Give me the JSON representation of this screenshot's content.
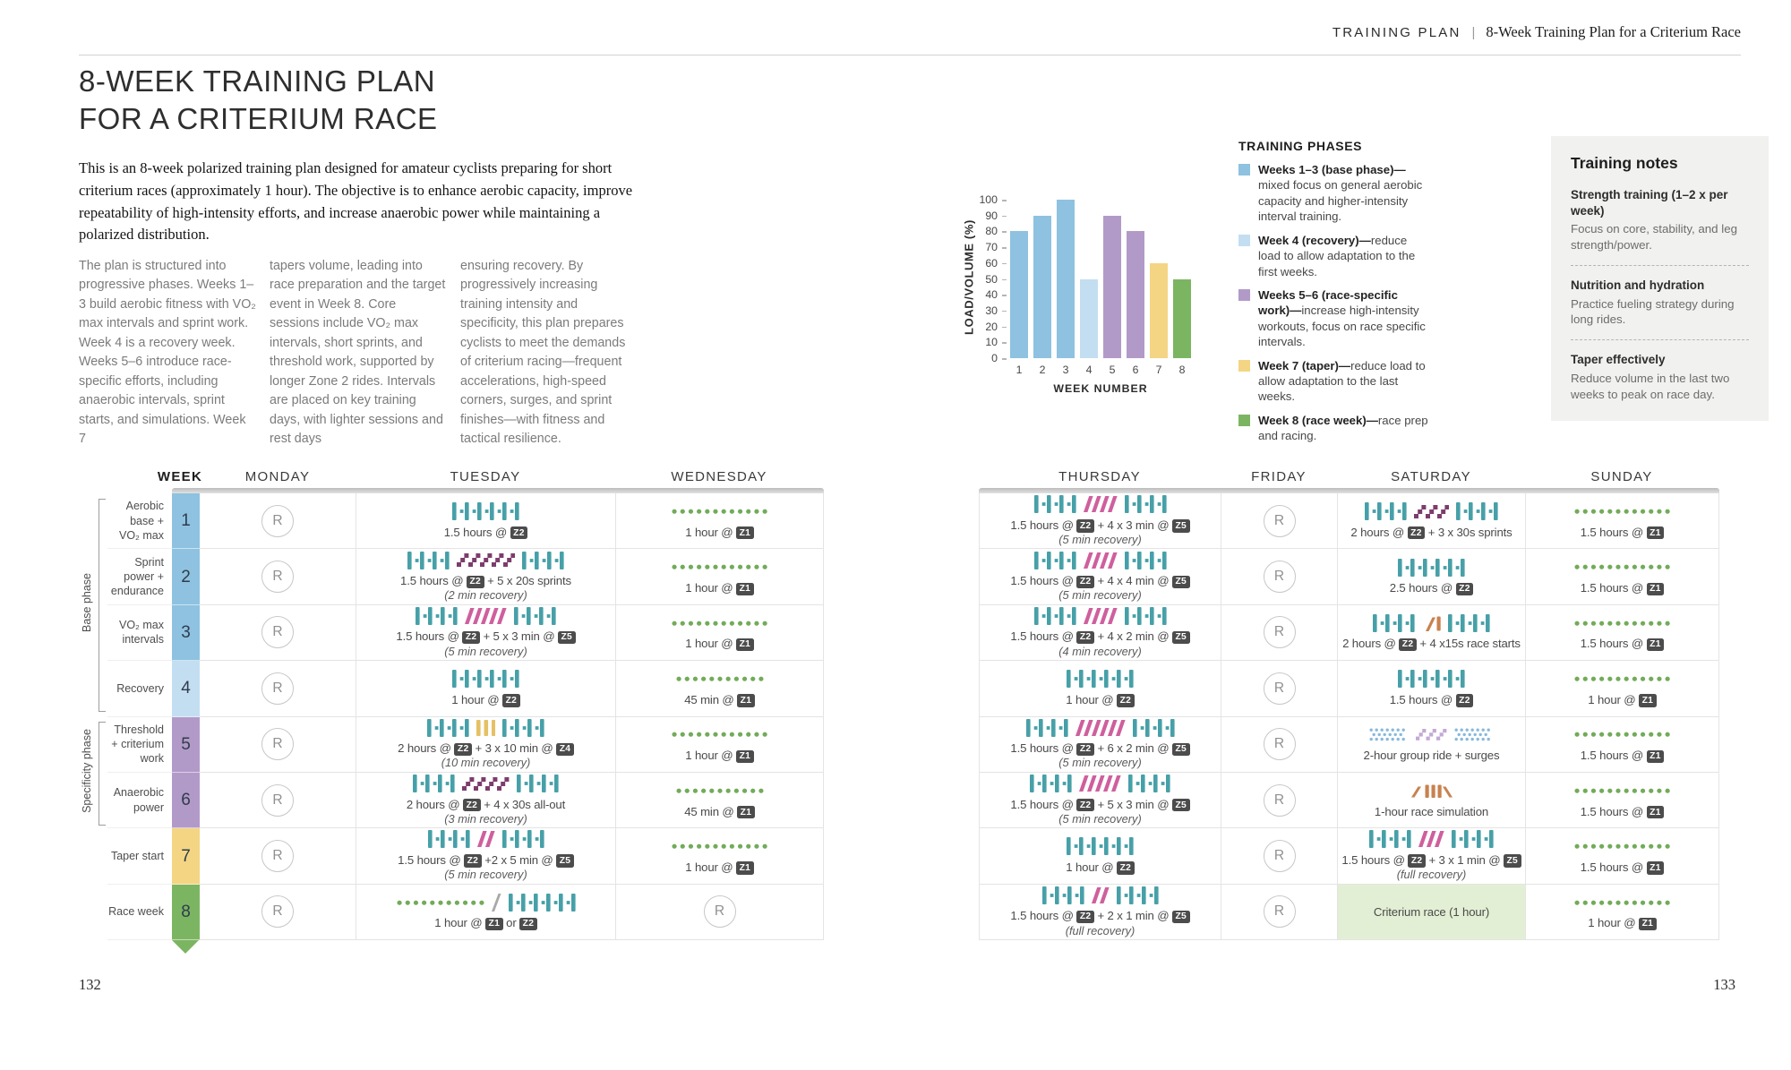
{
  "header": {
    "section": "TRAINING PLAN",
    "divider": "|",
    "subtitle": "8-Week Training Plan for a Criterium Race"
  },
  "page_left": {
    "title_line1": "8-WEEK TRAINING PLAN",
    "title_line2": "FOR A CRITERIUM RACE",
    "intro": "This is an 8-week polarized training plan designed for amateur cyclists preparing for short criterium races (approximately 1 hour). The objective is to enhance aerobic capacity, improve repeatability of high-intensity efforts, and increase anaerobic power while maintaining a polarized distribution.",
    "columns": [
      "The plan is structured into progressive phases. Weeks 1–3 build aerobic fitness with VO₂ max intervals and sprint work. Week 4 is a recovery week. Weeks 5–6 introduce race-specific efforts, including anaerobic intervals, sprint starts, and simulations. Week 7",
      "tapers volume, leading into race preparation and the target event in Week 8. Core sessions include VO₂ max intervals, short sprints, and threshold work, supported by longer Zone 2 rides. Intervals are placed on key training days, with lighter sessions and rest days",
      "ensuring recovery. By progressively increasing training intensity and specificity, this plan prepares cyclists to meet the demands of criterium racing—frequent accelerations, high-speed corners, surges, and sprint finishes—with fitness and tactical resilience."
    ],
    "page_number": "132"
  },
  "page_right": {
    "page_number": "133"
  },
  "chart_data": {
    "type": "bar",
    "categories": [
      "1",
      "2",
      "3",
      "4",
      "5",
      "6",
      "7",
      "8"
    ],
    "values": [
      80,
      90,
      100,
      50,
      90,
      80,
      60,
      50
    ],
    "colors": [
      "#8ec2e0",
      "#8ec2e0",
      "#8ec2e0",
      "#c3def1",
      "#b29ac8",
      "#b29ac8",
      "#f3d584",
      "#7cb562"
    ],
    "xlabel": "WEEK NUMBER",
    "ylabel": "LOAD/VOLUME (%)",
    "ylim": [
      0,
      100
    ],
    "ytick_step": 10,
    "grid": false,
    "legend_position": "right"
  },
  "legend": {
    "title": "TRAINING PHASES",
    "items": [
      {
        "color": "#8ec2e0",
        "lead": "Weeks 1–3 (base phase)—",
        "rest": "mixed focus on general aerobic capacity and higher-intensity interval training."
      },
      {
        "color": "#c3def1",
        "lead": "Week 4 (recovery)—",
        "rest": "reduce load to allow adaptation to the first weeks."
      },
      {
        "color": "#b29ac8",
        "lead": "Weeks 5–6 (race-specific work)—",
        "rest": "increase high-intensity workouts, focus on race specific intervals."
      },
      {
        "color": "#f3d584",
        "lead": "Week 7 (taper)—",
        "rest": "reduce load to allow adaptation to the last weeks."
      },
      {
        "color": "#7cb562",
        "lead": "Week 8 (race week)—",
        "rest": "race prep and racing."
      }
    ]
  },
  "notes": {
    "title": "Training notes",
    "items": [
      {
        "heading": "Strength training (1–2 x per week)",
        "body": "Focus on core, stability, and leg strength/power."
      },
      {
        "heading": "Nutrition and hydration",
        "body": "Practice fueling strategy during long rides."
      },
      {
        "heading": "Taper effectively",
        "body": "Reduce volume in the last two weeks to peak on race day."
      }
    ]
  },
  "icon_colors": {
    "z2": "#47a0a8",
    "z1": "#72ab59",
    "z5": "#cf5f9d",
    "sprint": "#7d3c6c",
    "z4": "#e6c065",
    "orange": "#c8824f",
    "group_blue": "#88b9dc",
    "group_purple": "#c3a9d6",
    "sep": "#a9a9a9"
  },
  "table": {
    "rest_label": "R",
    "head": {
      "week": "WEEK",
      "monday": "MONDAY",
      "tuesday": "TUESDAY",
      "wednesday": "WEDNESDAY",
      "thursday": "THURSDAY",
      "friday": "FRIDAY",
      "saturday": "SATURDAY",
      "sunday": "SUNDAY"
    },
    "phases": [
      {
        "label": "Base phase"
      },
      {
        "label": "Specificity phase"
      }
    ],
    "rows": [
      {
        "week": 1,
        "label": "Aerobic base + VO₂ max",
        "week_color": "#8ec2e0",
        "monday": {
          "rest": true
        },
        "tuesday": {
          "icons": [
            {
              "t": "z2",
              "n": 6
            }
          ],
          "text": "1.5 hours @ [Z2]"
        },
        "wednesday": {
          "icons": [
            {
              "t": "dots",
              "n": 12
            }
          ],
          "text": "1 hour @ [Z1]"
        },
        "thursday": {
          "icons": [
            {
              "t": "z2",
              "n": 4
            },
            {
              "t": "slash",
              "n": 4
            },
            {
              "t": "z2",
              "n": 4
            }
          ],
          "text": "1.5 hours @ [Z2] + 4 x 3 min @ [Z5]",
          "sub": "(5 min recovery)"
        },
        "friday": {
          "rest": true
        },
        "saturday": {
          "icons": [
            {
              "t": "z2",
              "n": 4
            },
            {
              "t": "steps",
              "n": 3
            },
            {
              "t": "z2",
              "n": 4
            }
          ],
          "text": "2 hours @ [Z2] + 3 x 30s sprints"
        },
        "sunday": {
          "icons": [
            {
              "t": "dots",
              "n": 12
            }
          ],
          "text": "1.5 hours @ [Z1]"
        }
      },
      {
        "week": 2,
        "label": "Sprint power + endurance",
        "week_color": "#8ec2e0",
        "monday": {
          "rest": true
        },
        "tuesday": {
          "icons": [
            {
              "t": "z2",
              "n": 4
            },
            {
              "t": "steps",
              "n": 5
            },
            {
              "t": "z2",
              "n": 4
            }
          ],
          "text": "1.5 hours @ [Z2] + 5 x 20s sprints",
          "sub": "(2 min recovery)"
        },
        "wednesday": {
          "icons": [
            {
              "t": "dots",
              "n": 12
            }
          ],
          "text": "1 hour @ [Z1]"
        },
        "thursday": {
          "icons": [
            {
              "t": "z2",
              "n": 4
            },
            {
              "t": "slash",
              "n": 4
            },
            {
              "t": "z2",
              "n": 4
            }
          ],
          "text": "1.5 hours @ [Z2] + 4 x 4 min @ [Z5]",
          "sub": "(5 min recovery)"
        },
        "friday": {
          "rest": true
        },
        "saturday": {
          "icons": [
            {
              "t": "z2",
              "n": 6
            }
          ],
          "text": "2.5 hours @ [Z2]"
        },
        "sunday": {
          "icons": [
            {
              "t": "dots",
              "n": 12
            }
          ],
          "text": "1.5 hours @ [Z1]"
        }
      },
      {
        "week": 3,
        "label": "VO₂ max intervals",
        "week_color": "#8ec2e0",
        "monday": {
          "rest": true
        },
        "tuesday": {
          "icons": [
            {
              "t": "z2",
              "n": 4
            },
            {
              "t": "slash",
              "n": 5
            },
            {
              "t": "z2",
              "n": 4
            }
          ],
          "text": "1.5 hours @ [Z2] + 5 x 3 min @ [Z5]",
          "sub": "(5 min recovery)"
        },
        "wednesday": {
          "icons": [
            {
              "t": "dots",
              "n": 12
            }
          ],
          "text": "1 hour @ [Z1]"
        },
        "thursday": {
          "icons": [
            {
              "t": "z2",
              "n": 4
            },
            {
              "t": "slash",
              "n": 4
            },
            {
              "t": "z2",
              "n": 4
            }
          ],
          "text": "1.5 hours @ [Z2] + 4 x 2 min @ [Z5]",
          "sub": "(4 min recovery)"
        },
        "friday": {
          "rest": true
        },
        "saturday": {
          "icons": [
            {
              "t": "z2",
              "n": 4
            },
            {
              "t": "racestart"
            },
            {
              "t": "z2",
              "n": 4
            }
          ],
          "text": "2 hours @ [Z2] + 4 x15s race starts"
        },
        "sunday": {
          "icons": [
            {
              "t": "dots",
              "n": 12
            }
          ],
          "text": "1.5 hours @ [Z1]"
        }
      },
      {
        "week": 4,
        "label": "Recovery",
        "week_color": "#c3def1",
        "monday": {
          "rest": true
        },
        "tuesday": {
          "icons": [
            {
              "t": "z2",
              "n": 6
            }
          ],
          "text": "1 hour @ [Z2]"
        },
        "wednesday": {
          "icons": [
            {
              "t": "dots",
              "n": 11
            }
          ],
          "text": "45 min @ [Z1]"
        },
        "thursday": {
          "icons": [
            {
              "t": "z2",
              "n": 6
            }
          ],
          "text": "1 hour @ [Z2]"
        },
        "friday": {
          "rest": true
        },
        "saturday": {
          "icons": [
            {
              "t": "z2",
              "n": 6
            }
          ],
          "text": "1.5 hours @ [Z2]"
        },
        "sunday": {
          "icons": [
            {
              "t": "dots",
              "n": 12
            }
          ],
          "text": "1 hour @ [Z1]"
        }
      },
      {
        "week": 5,
        "label": "Threshold + criterium work",
        "week_color": "#b29ac8",
        "monday": {
          "rest": true
        },
        "tuesday": {
          "icons": [
            {
              "t": "z2",
              "n": 4
            },
            {
              "t": "ybars",
              "n": 3
            },
            {
              "t": "z2",
              "n": 4
            }
          ],
          "text": "2 hours @ [Z2] + 3 x 10 min @ [Z4]",
          "sub": "(10 min recovery)"
        },
        "wednesday": {
          "icons": [
            {
              "t": "dots",
              "n": 12
            }
          ],
          "text": "1 hour @ [Z1]"
        },
        "thursday": {
          "icons": [
            {
              "t": "z2",
              "n": 4
            },
            {
              "t": "slash",
              "n": 6
            },
            {
              "t": "z2",
              "n": 4
            }
          ],
          "text": "1.5 hours @ [Z2] + 6 x 2 min @ [Z5]",
          "sub": "(5 min recovery)"
        },
        "friday": {
          "rest": true
        },
        "saturday": {
          "icons": [
            {
              "t": "dotgrid",
              "n": 7
            },
            {
              "t": "steps_light",
              "n": 3
            },
            {
              "t": "dotgrid",
              "n": 7
            }
          ],
          "text": "2-hour group ride + surges"
        },
        "sunday": {
          "icons": [
            {
              "t": "dots",
              "n": 12
            }
          ],
          "text": "1.5 hours @ [Z1]"
        }
      },
      {
        "week": 6,
        "label": "Anaerobic power",
        "week_color": "#b29ac8",
        "monday": {
          "rest": true
        },
        "tuesday": {
          "icons": [
            {
              "t": "z2",
              "n": 4
            },
            {
              "t": "steps",
              "n": 4
            },
            {
              "t": "z2",
              "n": 4
            }
          ],
          "text": "2 hours @ [Z2] + 4 x 30s all-out",
          "sub": "(3 min recovery)"
        },
        "wednesday": {
          "icons": [
            {
              "t": "dots",
              "n": 11
            }
          ],
          "text": "45 min @ [Z1]"
        },
        "thursday": {
          "icons": [
            {
              "t": "z2",
              "n": 4
            },
            {
              "t": "slash",
              "n": 5
            },
            {
              "t": "z2",
              "n": 4
            }
          ],
          "text": "1.5 hours @ [Z2] + 5 x 3 min @ [Z5]",
          "sub": "(5 min recovery)"
        },
        "friday": {
          "rest": true
        },
        "saturday": {
          "icons": [
            {
              "t": "racesim"
            }
          ],
          "text": "1-hour race simulation"
        },
        "sunday": {
          "icons": [
            {
              "t": "dots",
              "n": 12
            }
          ],
          "text": "1.5 hours @ [Z1]"
        }
      },
      {
        "week": 7,
        "label": "Taper start",
        "week_color": "#f3d584",
        "monday": {
          "rest": true
        },
        "tuesday": {
          "icons": [
            {
              "t": "z2",
              "n": 4
            },
            {
              "t": "slash",
              "n": 2
            },
            {
              "t": "z2",
              "n": 4
            }
          ],
          "text": "1.5 hours @ [Z2] +2 x 5 min @ [Z5]",
          "sub": "(5 min recovery)"
        },
        "wednesday": {
          "icons": [
            {
              "t": "dots",
              "n": 12
            }
          ],
          "text": "1 hour @ [Z1]"
        },
        "thursday": {
          "icons": [
            {
              "t": "z2",
              "n": 6
            }
          ],
          "text": "1 hour @ [Z2]"
        },
        "friday": {
          "rest": true
        },
        "saturday": {
          "icons": [
            {
              "t": "z2",
              "n": 4
            },
            {
              "t": "slash",
              "n": 3
            },
            {
              "t": "z2",
              "n": 4
            }
          ],
          "text": "1.5 hours @ [Z2] + 3 x 1 min @ [Z5]",
          "sub": "(full recovery)"
        },
        "sunday": {
          "icons": [
            {
              "t": "dots",
              "n": 12
            }
          ],
          "text": "1.5 hours @ [Z1]"
        }
      },
      {
        "week": 8,
        "label": "Race week",
        "week_color": "#7cb562",
        "monday": {
          "rest": true
        },
        "tuesday": {
          "icons": [
            {
              "t": "dots",
              "n": 11
            },
            {
              "t": "slashsep"
            },
            {
              "t": "z2",
              "n": 6
            }
          ],
          "text": "1 hour @ [Z1] or [Z2]"
        },
        "wednesday": {
          "rest": true
        },
        "thursday": {
          "icons": [
            {
              "t": "z2",
              "n": 4
            },
            {
              "t": "slash",
              "n": 2
            },
            {
              "t": "z2",
              "n": 4
            }
          ],
          "text": "1.5 hours @ [Z2] + 2 x 1 min @ [Z5]",
          "sub": "(full recovery)"
        },
        "friday": {
          "rest": true
        },
        "saturday": {
          "highlight": true,
          "text": "Criterium race (1 hour)"
        },
        "sunday": {
          "icons": [
            {
              "t": "dots",
              "n": 12
            }
          ],
          "text": "1 hour @ [Z1]"
        }
      }
    ]
  }
}
